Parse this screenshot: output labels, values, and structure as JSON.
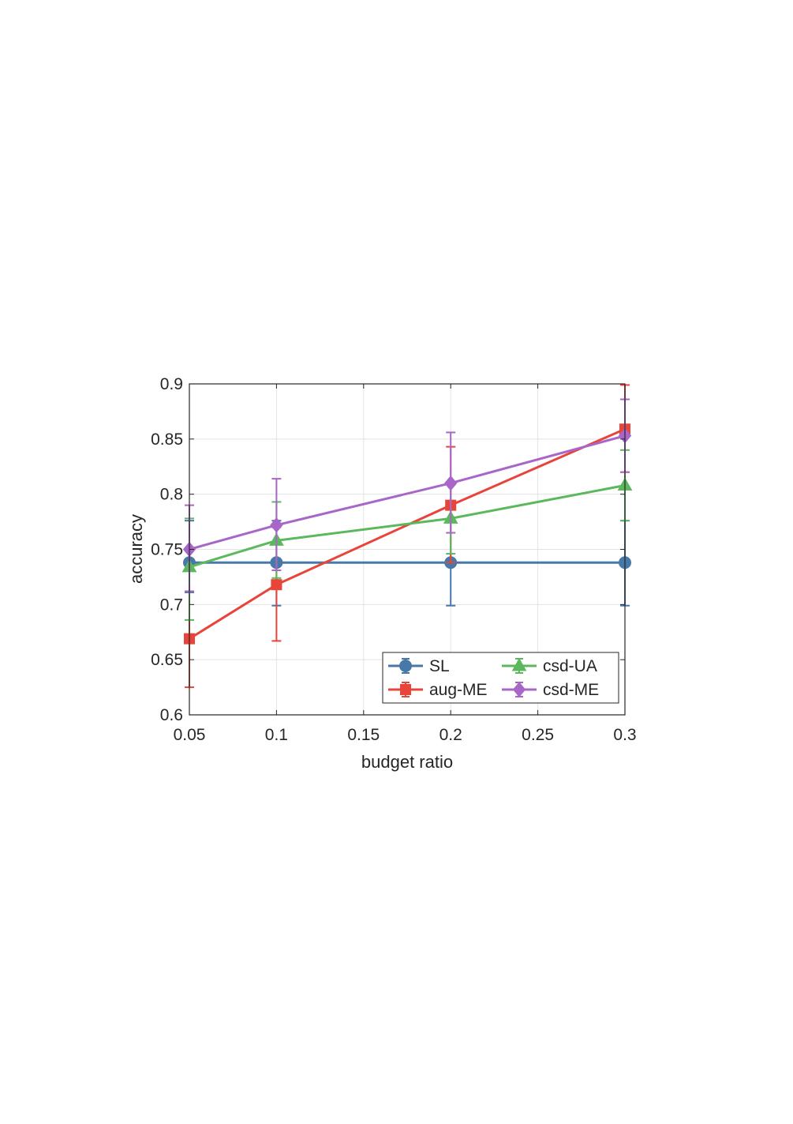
{
  "chart_data": {
    "type": "line",
    "xlabel": "budget ratio",
    "ylabel": "accuracy",
    "xlim": [
      0.05,
      0.3
    ],
    "ylim": [
      0.6,
      0.9
    ],
    "xticks": [
      "0.05",
      "0.1",
      "0.15",
      "0.2",
      "0.25",
      "0.3"
    ],
    "xtick_values": [
      0.05,
      0.1,
      0.15,
      0.2,
      0.25,
      0.3
    ],
    "yticks": [
      "0.6",
      "0.65",
      "0.7",
      "0.75",
      "0.8",
      "0.85",
      "0.9"
    ],
    "ytick_values": [
      0.6,
      0.65,
      0.7,
      0.75,
      0.8,
      0.85,
      0.9
    ],
    "grid": true,
    "legend_position": "bottom-right",
    "x": [
      0.05,
      0.1,
      0.2,
      0.3
    ],
    "series": [
      {
        "name": "SL",
        "color": "#4878a8",
        "marker": "circle",
        "values": [
          0.738,
          0.738,
          0.738,
          0.738
        ],
        "err_low": [
          0.711,
          0.699,
          0.699,
          0.699
        ],
        "err_high": [
          0.776,
          0.776,
          0.776,
          0.776
        ]
      },
      {
        "name": "aug-ME",
        "color": "#e8443a",
        "marker": "square",
        "values": [
          0.669,
          0.718,
          0.79,
          0.859
        ],
        "err_low": [
          0.625,
          0.667,
          0.738,
          0.82
        ],
        "err_high": [
          0.712,
          0.77,
          0.843,
          0.899
        ]
      },
      {
        "name": "csd-UA",
        "color": "#5cb85c",
        "marker": "triangle",
        "values": [
          0.734,
          0.758,
          0.778,
          0.808
        ],
        "err_low": [
          0.686,
          0.724,
          0.746,
          0.776
        ],
        "err_high": [
          0.778,
          0.793,
          0.81,
          0.84
        ]
      },
      {
        "name": "csd-ME",
        "color": "#a866c8",
        "marker": "diamond",
        "values": [
          0.75,
          0.772,
          0.81,
          0.853
        ],
        "err_low": [
          0.712,
          0.731,
          0.765,
          0.82
        ],
        "err_high": [
          0.79,
          0.814,
          0.856,
          0.886
        ]
      }
    ]
  }
}
